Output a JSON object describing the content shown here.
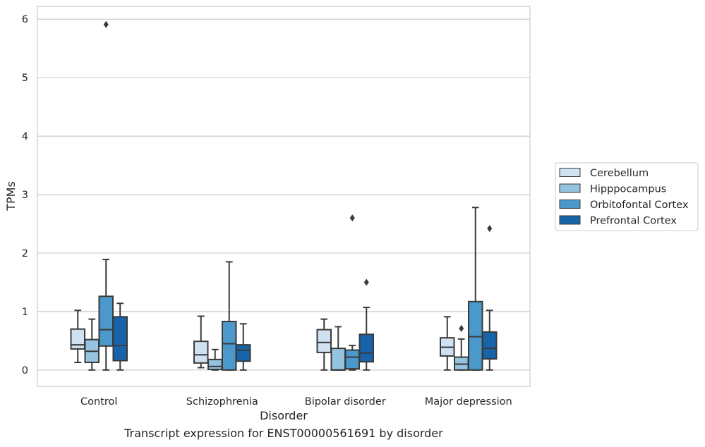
{
  "caption": "Transcript expression for ENST00000561691 by disorder",
  "colors": {
    "Cerebellum": "#d0e1f2",
    "Hipppocampus": "#94c4df",
    "Orbitofontal Cortex": "#4b98ca",
    "Prefrontal Cortex": "#1764ab",
    "grid": "#cccccc",
    "line": "#3a3a3a"
  },
  "chart_data": {
    "type": "box",
    "title": "",
    "xlabel": "Disorder",
    "ylabel": "TPMs",
    "categories": [
      "Control",
      "Schizophrenia",
      "Bipolar disorder",
      "Major depression"
    ],
    "ylim": [
      -0.28,
      6.22
    ],
    "yticks": [
      0,
      1,
      2,
      3,
      4,
      5,
      6
    ],
    "grid": true,
    "legend_position": "right-outside",
    "series": [
      {
        "name": "Cerebellum",
        "boxes": [
          {
            "whislo": 0.13,
            "q1": 0.36,
            "med": 0.43,
            "q3": 0.7,
            "whishi": 1.02,
            "fliers": []
          },
          {
            "whislo": 0.04,
            "q1": 0.12,
            "med": 0.26,
            "q3": 0.49,
            "whishi": 0.92,
            "fliers": []
          },
          {
            "whislo": 0.0,
            "q1": 0.3,
            "med": 0.47,
            "q3": 0.69,
            "whishi": 0.87,
            "fliers": []
          },
          {
            "whislo": 0.0,
            "q1": 0.24,
            "med": 0.39,
            "q3": 0.55,
            "whishi": 0.91,
            "fliers": []
          }
        ]
      },
      {
        "name": "Hipppocampus",
        "boxes": [
          {
            "whislo": 0.0,
            "q1": 0.13,
            "med": 0.32,
            "q3": 0.52,
            "whishi": 0.87,
            "fliers": []
          },
          {
            "whislo": 0.0,
            "q1": 0.01,
            "med": 0.06,
            "q3": 0.18,
            "whishi": 0.35,
            "fliers": []
          },
          {
            "whislo": 0.0,
            "q1": 0.0,
            "med": 0.0,
            "q3": 0.37,
            "whishi": 0.74,
            "fliers": []
          },
          {
            "whislo": 0.0,
            "q1": 0.0,
            "med": 0.1,
            "q3": 0.22,
            "whishi": 0.53,
            "fliers": [
              0.71
            ]
          }
        ]
      },
      {
        "name": "Orbitofontal Cortex",
        "boxes": [
          {
            "whislo": 0.0,
            "q1": 0.41,
            "med": 0.69,
            "q3": 1.26,
            "whishi": 1.89,
            "fliers": [
              5.91
            ]
          },
          {
            "whislo": 0.0,
            "q1": 0.0,
            "med": 0.45,
            "q3": 0.83,
            "whishi": 1.85,
            "fliers": []
          },
          {
            "whislo": 0.0,
            "q1": 0.02,
            "med": 0.22,
            "q3": 0.34,
            "whishi": 0.42,
            "fliers": [
              2.6
            ]
          },
          {
            "whislo": 0.0,
            "q1": 0.0,
            "med": 0.57,
            "q3": 1.17,
            "whishi": 2.78,
            "fliers": []
          }
        ]
      },
      {
        "name": "Prefrontal Cortex",
        "boxes": [
          {
            "whislo": 0.0,
            "q1": 0.16,
            "med": 0.42,
            "q3": 0.91,
            "whishi": 1.14,
            "fliers": []
          },
          {
            "whislo": 0.0,
            "q1": 0.15,
            "med": 0.34,
            "q3": 0.43,
            "whishi": 0.79,
            "fliers": []
          },
          {
            "whislo": 0.0,
            "q1": 0.14,
            "med": 0.29,
            "q3": 0.61,
            "whishi": 1.07,
            "fliers": [
              1.5
            ]
          },
          {
            "whislo": 0.0,
            "q1": 0.19,
            "med": 0.37,
            "q3": 0.65,
            "whishi": 1.02,
            "fliers": [
              2.42
            ]
          }
        ]
      }
    ]
  }
}
